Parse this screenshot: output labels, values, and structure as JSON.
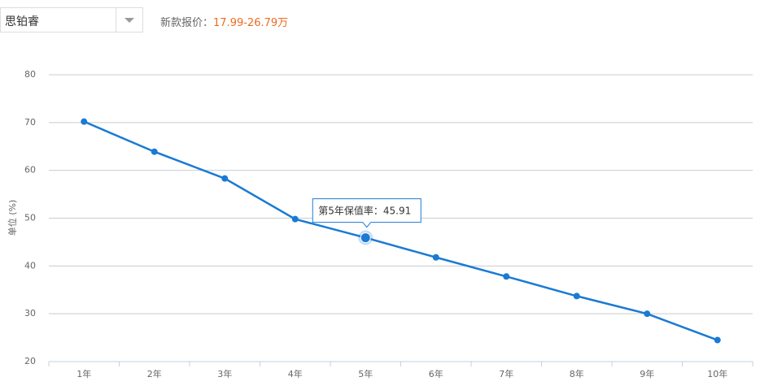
{
  "header": {
    "model": "思铂睿",
    "price_label": "新款报价：",
    "price": "17.99-26.79万"
  },
  "chart_data": {
    "type": "line",
    "y_label": "单位 (%)",
    "categories": [
      "1年",
      "2年",
      "3年",
      "4年",
      "5年",
      "6年",
      "7年",
      "8年",
      "9年",
      "10年"
    ],
    "series": [
      {
        "name": "保值率",
        "color": "#1a7ad4",
        "values": [
          70.2,
          63.9,
          58.3,
          49.8,
          45.91,
          41.8,
          37.8,
          33.7,
          30.0,
          24.5
        ]
      }
    ],
    "ylim": [
      20,
      80
    ],
    "yticks": [
      20,
      30,
      40,
      50,
      60,
      70,
      80
    ],
    "grid": true,
    "tooltip": {
      "index": 4,
      "text": "第5年保值率：45.91"
    }
  }
}
